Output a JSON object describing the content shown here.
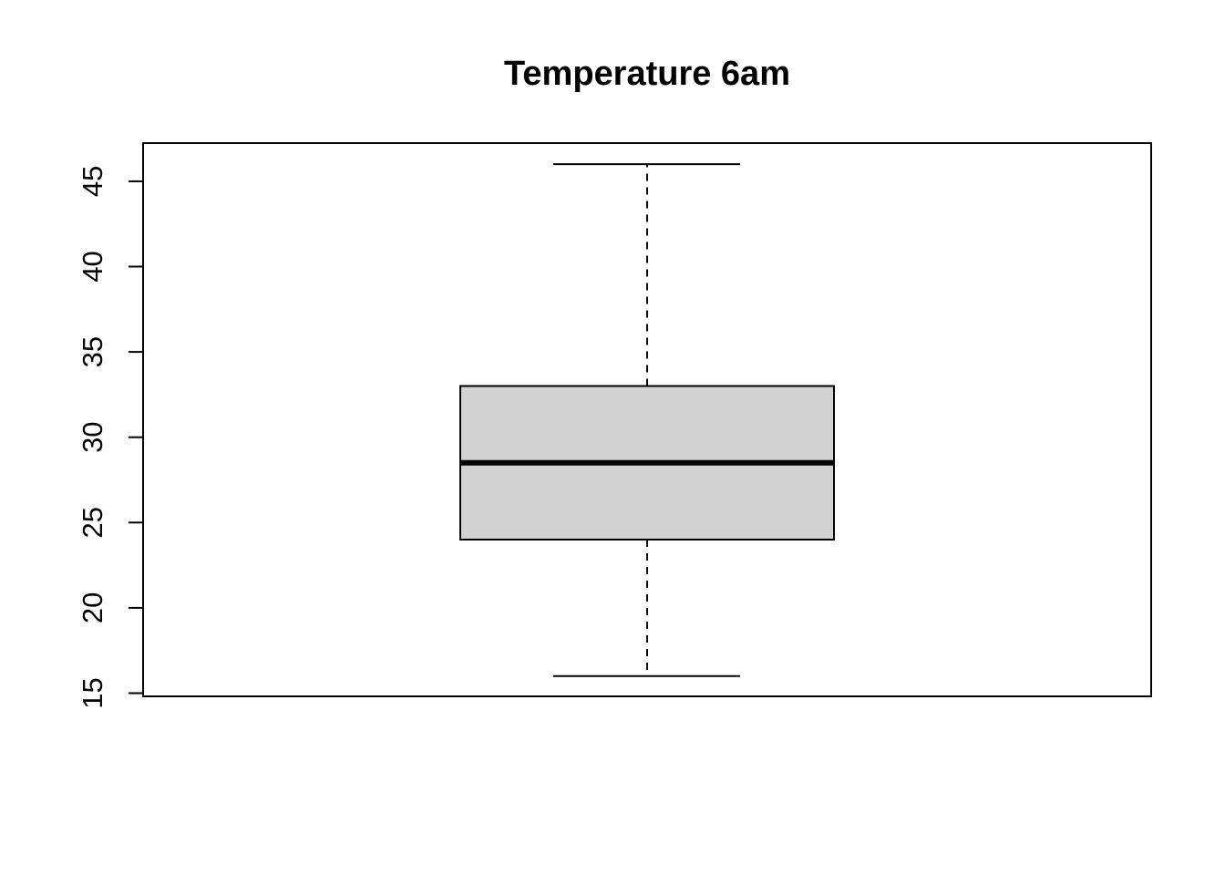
{
  "chart_data": {
    "type": "boxplot",
    "title": "Temperature 6am",
    "xlabel": "",
    "ylabel": "",
    "ylim": [
      15,
      47
    ],
    "yticks": [
      "15",
      "20",
      "25",
      "30",
      "35",
      "40",
      "45"
    ],
    "grid": false,
    "series": [
      {
        "min": 16,
        "q1": 24,
        "median": 28.5,
        "q3": 33,
        "max": 46,
        "outliers": []
      }
    ],
    "colors": {
      "box_fill": "#d3d3d3",
      "stroke": "#000000"
    }
  }
}
